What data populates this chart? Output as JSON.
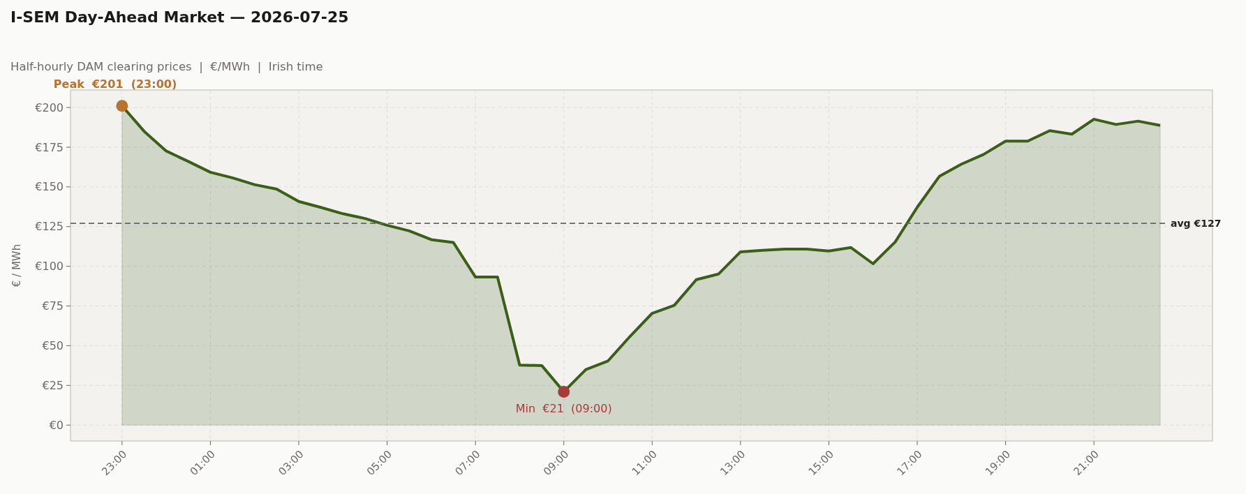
{
  "chart_data": {
    "type": "area",
    "title": "I-SEM Day-Ahead Market — 2026-07-25",
    "subtitle": "Half-hourly DAM clearing prices  |  €/MWh  |  Irish time",
    "ylabel": "€ / MWh",
    "x": [
      "2026-07-24T23:00",
      "2026-07-24T23:30",
      "2026-07-25T00:00",
      "2026-07-25T00:30",
      "2026-07-25T01:00",
      "2026-07-25T01:30",
      "2026-07-25T02:00",
      "2026-07-25T02:30",
      "2026-07-25T03:00",
      "2026-07-25T03:30",
      "2026-07-25T04:00",
      "2026-07-25T04:30",
      "2026-07-25T05:00",
      "2026-07-25T05:30",
      "2026-07-25T06:00",
      "2026-07-25T06:30",
      "2026-07-25T07:00",
      "2026-07-25T07:30",
      "2026-07-25T08:00",
      "2026-07-25T08:30",
      "2026-07-25T09:00",
      "2026-07-25T09:30",
      "2026-07-25T10:00",
      "2026-07-25T10:30",
      "2026-07-25T11:00",
      "2026-07-25T11:30",
      "2026-07-25T12:00",
      "2026-07-25T12:30",
      "2026-07-25T13:00",
      "2026-07-25T13:30",
      "2026-07-25T14:00",
      "2026-07-25T14:30",
      "2026-07-25T15:00",
      "2026-07-25T15:30",
      "2026-07-25T16:00",
      "2026-07-25T16:30",
      "2026-07-25T17:00",
      "2026-07-25T17:30",
      "2026-07-25T18:00",
      "2026-07-25T18:30",
      "2026-07-25T19:00",
      "2026-07-25T19:30",
      "2026-07-25T20:00",
      "2026-07-25T20:30",
      "2026-07-25T21:00",
      "2026-07-25T21:30",
      "2026-07-25T22:00",
      "2026-07-25T22:30"
    ],
    "series": [
      {
        "color": "#3a5f17",
        "values": [
          201,
          185,
          172.6,
          166,
          159.2,
          155.7,
          151.4,
          148.6,
          140.8,
          137.1,
          133.1,
          130.1,
          125.8,
          122.3,
          116.8,
          115,
          93.2,
          93.2,
          37.8,
          37.5,
          21,
          35,
          40.4,
          55.9,
          70.4,
          75.4,
          91.6,
          95.1,
          109.1,
          110.1,
          110.8,
          110.8,
          109.6,
          111.8,
          101.6,
          115.3,
          137.2,
          156.6,
          164.3,
          170.4,
          178.8,
          178.8,
          185.4,
          183.2,
          192.6,
          189.3,
          191.4,
          188.7
        ]
      }
    ],
    "xlim": [
      "2026-07-24T21:50",
      "2026-07-25T23:41"
    ],
    "xticks": [
      {
        "value": "2026-07-24T23:00",
        "label": "23:00"
      },
      {
        "value": "2026-07-25T01:00",
        "label": "01:00"
      },
      {
        "value": "2026-07-25T03:00",
        "label": "03:00"
      },
      {
        "value": "2026-07-25T05:00",
        "label": "05:00"
      },
      {
        "value": "2026-07-25T07:00",
        "label": "07:00"
      },
      {
        "value": "2026-07-25T09:00",
        "label": "09:00"
      },
      {
        "value": "2026-07-25T11:00",
        "label": "11:00"
      },
      {
        "value": "2026-07-25T13:00",
        "label": "13:00"
      },
      {
        "value": "2026-07-25T15:00",
        "label": "15:00"
      },
      {
        "value": "2026-07-25T17:00",
        "label": "17:00"
      },
      {
        "value": "2026-07-25T19:00",
        "label": "19:00"
      },
      {
        "value": "2026-07-25T21:00",
        "label": "21:00"
      }
    ],
    "ylim": [
      -10,
      211
    ],
    "yticks": [
      {
        "value": 0,
        "label": "€0"
      },
      {
        "value": 25,
        "label": "€25"
      },
      {
        "value": 50,
        "label": "€50"
      },
      {
        "value": 75,
        "label": "€75"
      },
      {
        "value": 100,
        "label": "€100"
      },
      {
        "value": 125,
        "label": "€125"
      },
      {
        "value": 150,
        "label": "€150"
      },
      {
        "value": 175,
        "label": "€175"
      },
      {
        "value": 200,
        "label": "€200"
      }
    ],
    "ref_lines": [
      {
        "axis": "y",
        "value": 127,
        "label": "avg €127",
        "color": "#666666",
        "line_style": "dashed"
      }
    ],
    "annotations": [
      {
        "text": "Peak  €201  (23:00)",
        "x": "2026-07-24T23:00",
        "y": 201
      },
      {
        "text": "Min  €21  (09:00)",
        "x": "2026-07-25T09:00",
        "y": 21
      }
    ],
    "grid": true
  }
}
